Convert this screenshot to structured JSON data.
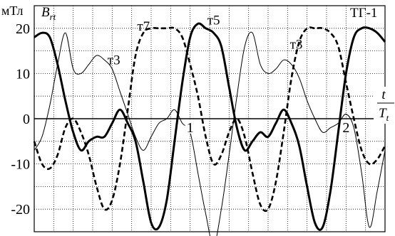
{
  "chart_data": {
    "type": "line",
    "unit_label": "мТл",
    "ylabel_main": "B",
    "ylabel_sub": "rt",
    "xlabel_num": "t",
    "xlabel_den": "T",
    "xlabel_den_sub": "t",
    "plot_label": "ТГ-1",
    "xlim": [
      0,
      2.25
    ],
    "ylim": [
      -25,
      25
    ],
    "grid": true,
    "y_ticks": [
      {
        "value": 20,
        "label": "20"
      },
      {
        "value": 10,
        "label": "10"
      },
      {
        "value": 0,
        "label": "0"
      },
      {
        "value": -10,
        "label": "-10"
      },
      {
        "value": -20,
        "label": "-20"
      }
    ],
    "x_ticks": [
      {
        "value": 1,
        "label": "1"
      },
      {
        "value": 2,
        "label": "2"
      }
    ],
    "series": [
      {
        "name": "т3",
        "style": "thin",
        "points": [
          [
            0,
            -7
          ],
          [
            0.05,
            -4
          ],
          [
            0.1,
            3
          ],
          [
            0.15,
            12
          ],
          [
            0.2,
            19
          ],
          [
            0.25,
            11
          ],
          [
            0.3,
            10
          ],
          [
            0.35,
            12
          ],
          [
            0.4,
            14
          ],
          [
            0.45,
            13
          ],
          [
            0.5,
            11
          ],
          [
            0.55,
            6
          ],
          [
            0.6,
            1
          ],
          [
            0.65,
            -4
          ],
          [
            0.7,
            -7
          ],
          [
            0.75,
            -4
          ],
          [
            0.8,
            -1
          ],
          [
            0.85,
            0
          ],
          [
            0.9,
            2
          ],
          [
            0.95,
            -1
          ],
          [
            1.0,
            -3
          ],
          [
            1.05,
            -12
          ],
          [
            1.1,
            -21
          ],
          [
            1.15,
            -28
          ],
          [
            1.2,
            -20
          ],
          [
            1.25,
            -8
          ],
          [
            1.3,
            5
          ],
          [
            1.35,
            16
          ],
          [
            1.4,
            19
          ],
          [
            1.45,
            12
          ],
          [
            1.5,
            10
          ],
          [
            1.55,
            11
          ],
          [
            1.6,
            13
          ],
          [
            1.65,
            12
          ],
          [
            1.7,
            9
          ],
          [
            1.75,
            4
          ],
          [
            1.8,
            0
          ],
          [
            1.85,
            -3
          ],
          [
            1.9,
            -2
          ],
          [
            1.95,
            -1
          ],
          [
            2.0,
            1
          ],
          [
            2.05,
            -2
          ],
          [
            2.1,
            -12
          ],
          [
            2.15,
            -24
          ],
          [
            2.2,
            -16
          ],
          [
            2.25,
            -7
          ]
        ]
      },
      {
        "name": "т5",
        "style": "thick",
        "points": [
          [
            0,
            18
          ],
          [
            0.05,
            19
          ],
          [
            0.1,
            18
          ],
          [
            0.15,
            12
          ],
          [
            0.2,
            4
          ],
          [
            0.25,
            -3
          ],
          [
            0.3,
            -7
          ],
          [
            0.35,
            -5
          ],
          [
            0.4,
            -4
          ],
          [
            0.45,
            -4
          ],
          [
            0.5,
            -1
          ],
          [
            0.55,
            2
          ],
          [
            0.6,
            -1
          ],
          [
            0.65,
            -5
          ],
          [
            0.7,
            -14
          ],
          [
            0.75,
            -23
          ],
          [
            0.8,
            -24
          ],
          [
            0.85,
            -18
          ],
          [
            0.9,
            -5
          ],
          [
            0.95,
            8
          ],
          [
            1.0,
            18
          ],
          [
            1.05,
            21
          ],
          [
            1.1,
            20
          ],
          [
            1.15,
            19
          ],
          [
            1.2,
            16
          ],
          [
            1.25,
            7
          ],
          [
            1.3,
            -2
          ],
          [
            1.35,
            -7
          ],
          [
            1.4,
            -5
          ],
          [
            1.45,
            -3
          ],
          [
            1.5,
            -4
          ],
          [
            1.55,
            -1
          ],
          [
            1.6,
            2
          ],
          [
            1.65,
            -1
          ],
          [
            1.7,
            -6
          ],
          [
            1.75,
            -15
          ],
          [
            1.8,
            -23
          ],
          [
            1.85,
            -24
          ],
          [
            1.9,
            -16
          ],
          [
            1.95,
            -3
          ],
          [
            2.0,
            10
          ],
          [
            2.05,
            18
          ],
          [
            2.1,
            20
          ],
          [
            2.15,
            20
          ],
          [
            2.2,
            19
          ],
          [
            2.25,
            17
          ]
        ]
      },
      {
        "name": "т7",
        "style": "dashed",
        "points": [
          [
            0,
            -5
          ],
          [
            0.05,
            -10
          ],
          [
            0.1,
            -11
          ],
          [
            0.15,
            -8
          ],
          [
            0.2,
            -2
          ],
          [
            0.25,
            0
          ],
          [
            0.3,
            -3
          ],
          [
            0.35,
            -8
          ],
          [
            0.4,
            -15
          ],
          [
            0.45,
            -20
          ],
          [
            0.5,
            -18
          ],
          [
            0.55,
            -10
          ],
          [
            0.6,
            2
          ],
          [
            0.65,
            14
          ],
          [
            0.7,
            19
          ],
          [
            0.75,
            20
          ],
          [
            0.8,
            20
          ],
          [
            0.85,
            20
          ],
          [
            0.9,
            20
          ],
          [
            0.95,
            18
          ],
          [
            1.0,
            12
          ],
          [
            1.05,
            5
          ],
          [
            1.1,
            -4
          ],
          [
            1.15,
            -10
          ],
          [
            1.2,
            -8
          ],
          [
            1.25,
            -3
          ],
          [
            1.3,
            0
          ],
          [
            1.35,
            -4
          ],
          [
            1.4,
            -12
          ],
          [
            1.45,
            -19
          ],
          [
            1.5,
            -20
          ],
          [
            1.55,
            -14
          ],
          [
            1.6,
            -3
          ],
          [
            1.65,
            9
          ],
          [
            1.7,
            17
          ],
          [
            1.75,
            20
          ],
          [
            1.8,
            20
          ],
          [
            1.85,
            20
          ],
          [
            1.9,
            19
          ],
          [
            1.95,
            16
          ],
          [
            2.0,
            8
          ],
          [
            2.05,
            0
          ],
          [
            2.1,
            -7
          ],
          [
            2.15,
            -10
          ],
          [
            2.2,
            -9
          ],
          [
            2.25,
            -6
          ]
        ]
      }
    ],
    "annotations": [
      {
        "text": "т3",
        "x": 0.47,
        "y": 12
      },
      {
        "text": "т7",
        "x": 0.66,
        "y": 19.5
      },
      {
        "text": "т5",
        "x": 1.11,
        "y": 20.8
      },
      {
        "text": "т3",
        "x": 1.64,
        "y": 15.5
      }
    ]
  }
}
